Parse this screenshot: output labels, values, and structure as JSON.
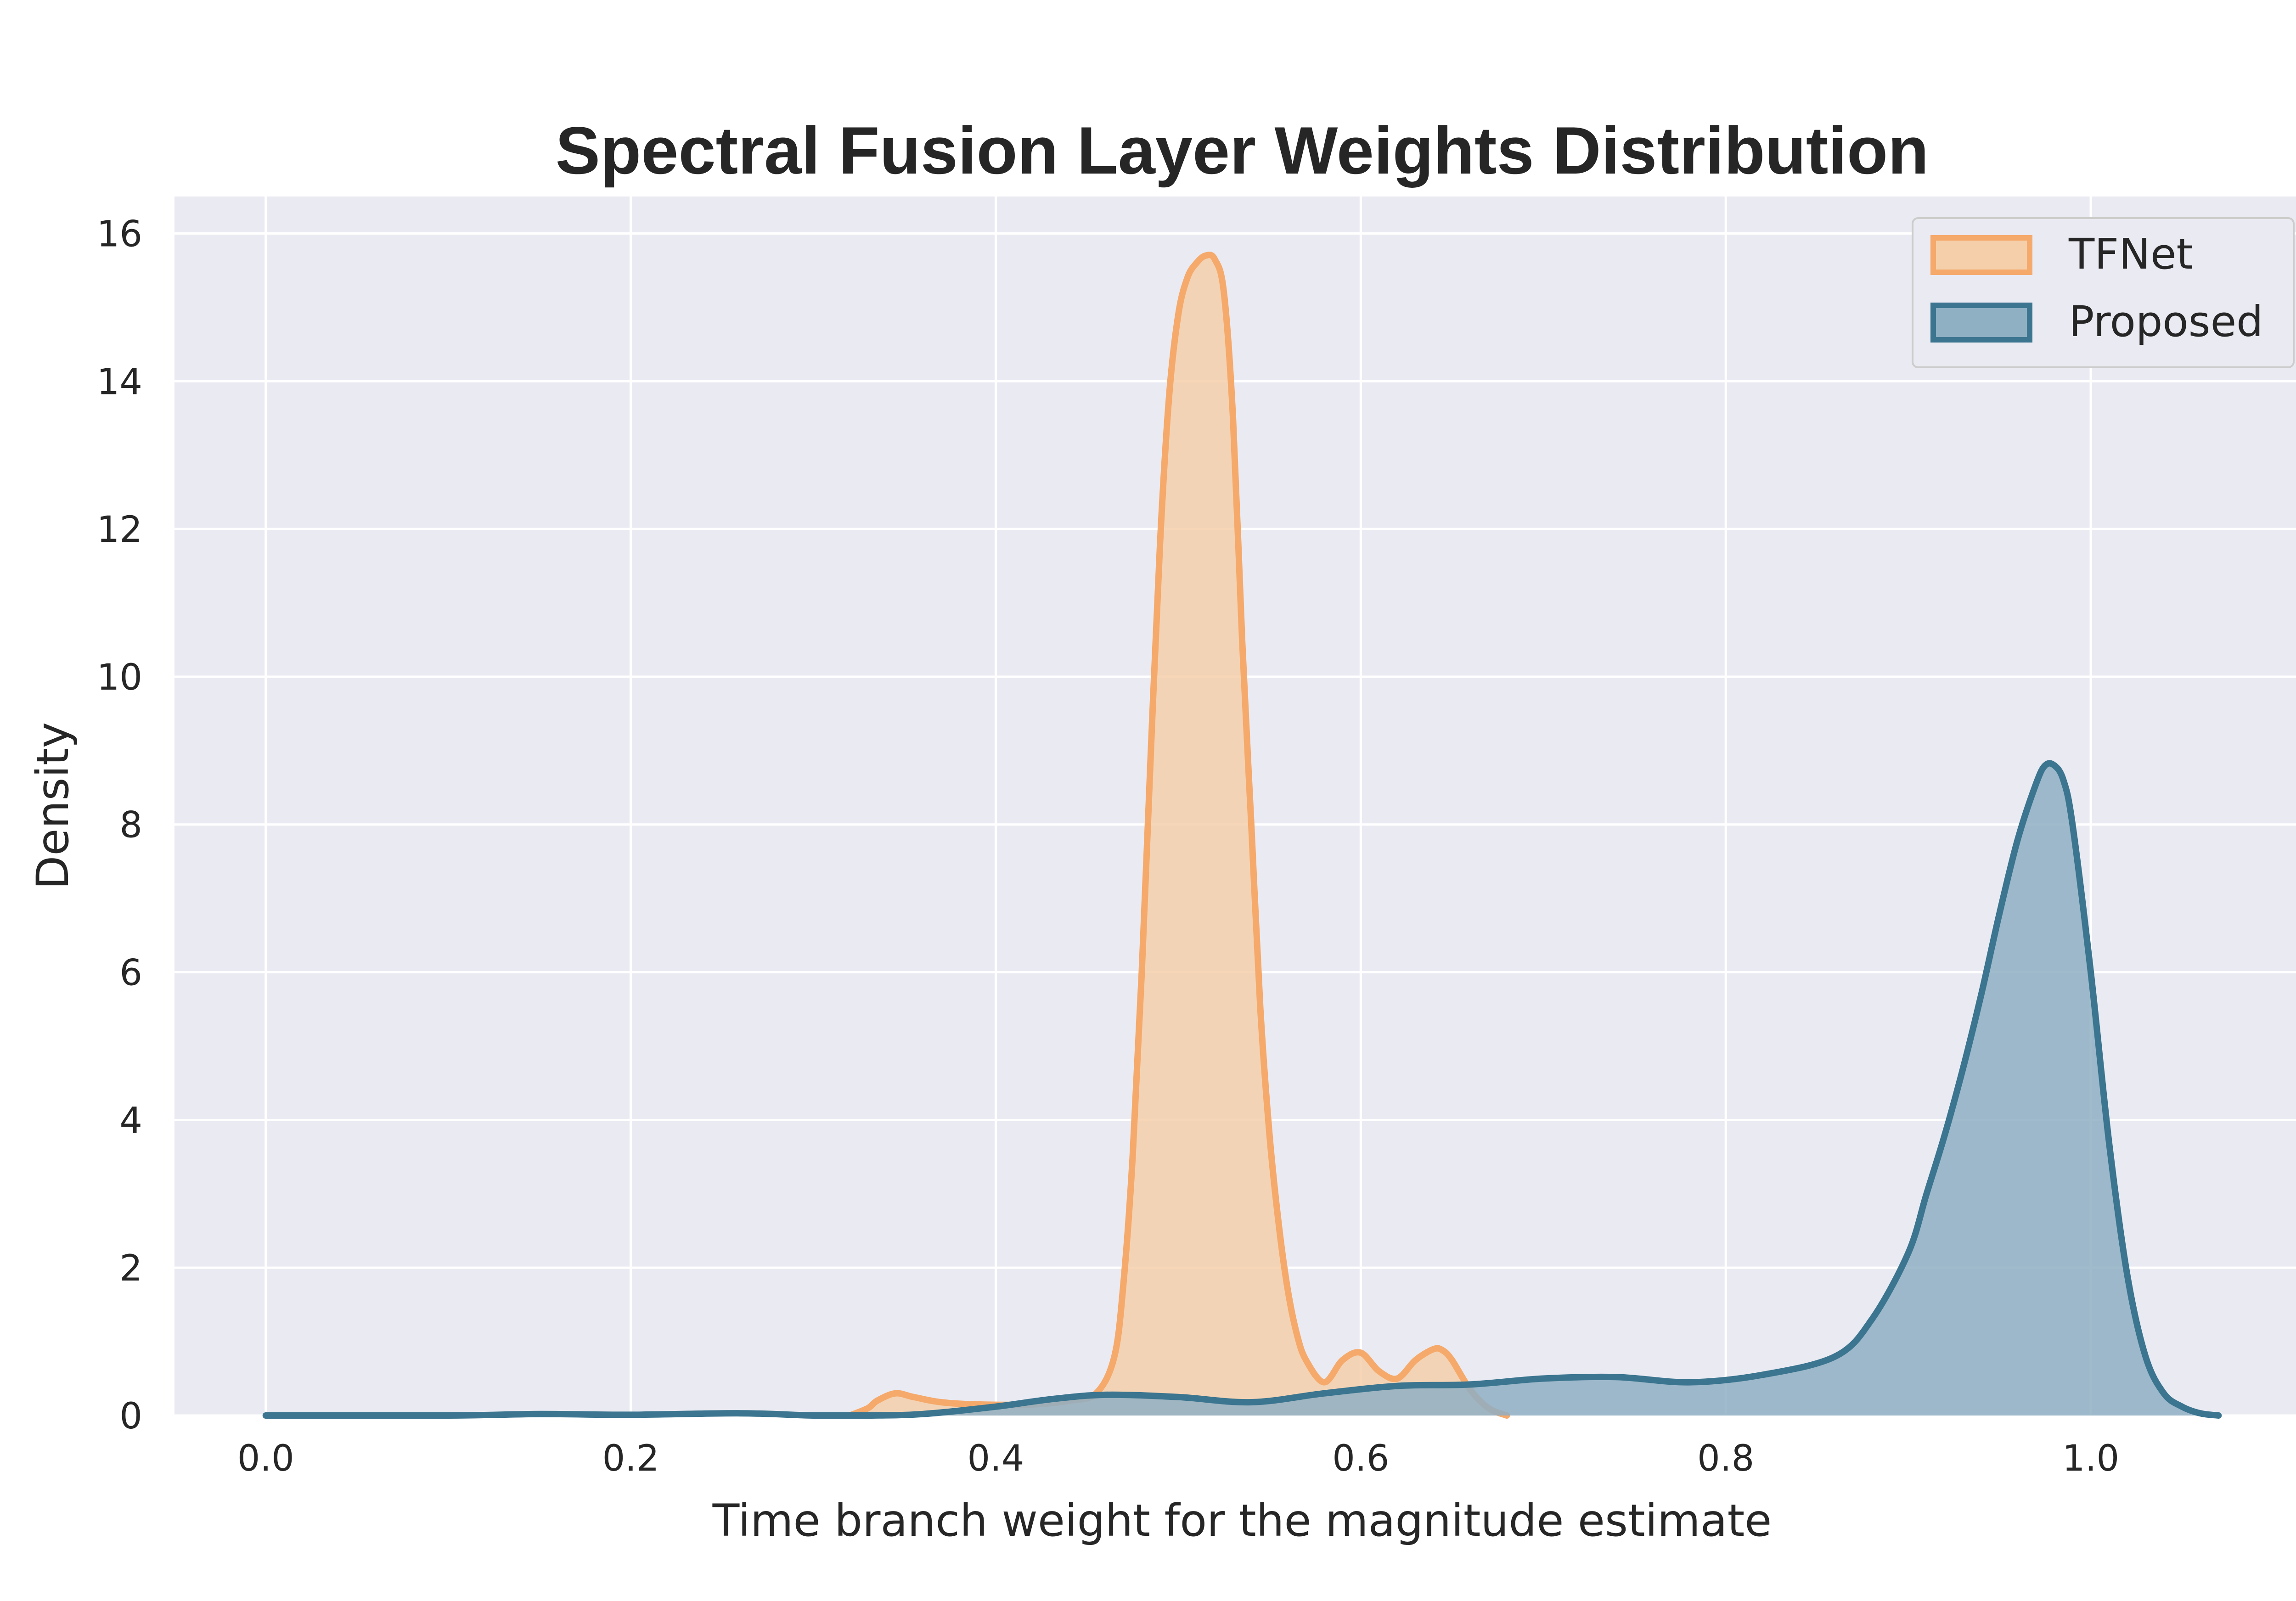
{
  "chart_data": {
    "type": "area",
    "title": "Spectral Fusion Layer Weights Distribution",
    "xlabel": "Time branch weight for the magnitude estimate",
    "ylabel": "Density",
    "xlim": [
      -0.05,
      1.12
    ],
    "ylim": [
      0,
      16.5
    ],
    "xticks": [
      0.0,
      0.2,
      0.4,
      0.6,
      0.8,
      1.0
    ],
    "xtick_labels": [
      "0.0",
      "0.2",
      "0.4",
      "0.6",
      "0.8",
      "1.0"
    ],
    "yticks": [
      0,
      2,
      4,
      6,
      8,
      10,
      12,
      14,
      16
    ],
    "ytick_labels": [
      "0",
      "2",
      "4",
      "6",
      "8",
      "10",
      "12",
      "14",
      "16"
    ],
    "grid": true,
    "legend_position": "top-right",
    "series": [
      {
        "name": "TFNet",
        "color": "#F5A96A",
        "fill": "#F5CFAA",
        "x": [
          0.32,
          0.33,
          0.335,
          0.345,
          0.355,
          0.37,
          0.39,
          0.42,
          0.44,
          0.455,
          0.465,
          0.47,
          0.475,
          0.48,
          0.485,
          0.49,
          0.495,
          0.5,
          0.505,
          0.51,
          0.515,
          0.52,
          0.525,
          0.53,
          0.535,
          0.54,
          0.545,
          0.55,
          0.555,
          0.56,
          0.565,
          0.57,
          0.58,
          0.59,
          0.6,
          0.61,
          0.62,
          0.63,
          0.64,
          0.645,
          0.65,
          0.66,
          0.67,
          0.68
        ],
        "y": [
          0.0,
          0.1,
          0.2,
          0.3,
          0.25,
          0.18,
          0.15,
          0.15,
          0.2,
          0.3,
          0.8,
          1.8,
          3.5,
          6.0,
          9.0,
          11.8,
          13.8,
          14.9,
          15.4,
          15.6,
          15.7,
          15.65,
          15.2,
          13.5,
          10.5,
          8.0,
          5.5,
          3.8,
          2.6,
          1.7,
          1.1,
          0.75,
          0.45,
          0.75,
          0.85,
          0.6,
          0.5,
          0.75,
          0.9,
          0.88,
          0.75,
          0.35,
          0.1,
          0.0
        ]
      },
      {
        "name": "Proposed",
        "color": "#3B758F",
        "fill": "#8FAFC3",
        "x": [
          0.0,
          0.1,
          0.15,
          0.2,
          0.26,
          0.3,
          0.33,
          0.36,
          0.4,
          0.43,
          0.46,
          0.5,
          0.54,
          0.58,
          0.62,
          0.66,
          0.7,
          0.74,
          0.78,
          0.82,
          0.86,
          0.88,
          0.9,
          0.91,
          0.92,
          0.93,
          0.94,
          0.95,
          0.96,
          0.97,
          0.975,
          0.98,
          0.985,
          0.99,
          1.0,
          1.01,
          1.02,
          1.03,
          1.04,
          1.05,
          1.06,
          1.07
        ],
        "y": [
          0.0,
          0.0,
          0.02,
          0.01,
          0.03,
          0.0,
          0.0,
          0.02,
          0.12,
          0.22,
          0.28,
          0.25,
          0.18,
          0.3,
          0.4,
          0.42,
          0.5,
          0.52,
          0.45,
          0.55,
          0.8,
          1.3,
          2.2,
          3.0,
          3.8,
          4.7,
          5.7,
          6.8,
          7.8,
          8.55,
          8.8,
          8.8,
          8.6,
          8.0,
          6.0,
          3.7,
          1.9,
          0.8,
          0.3,
          0.12,
          0.03,
          0.0
        ]
      }
    ]
  }
}
